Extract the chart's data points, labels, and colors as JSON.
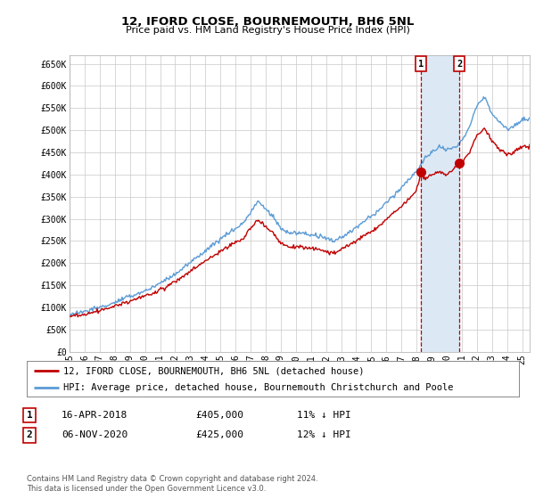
{
  "title": "12, IFORD CLOSE, BOURNEMOUTH, BH6 5NL",
  "subtitle": "Price paid vs. HM Land Registry's House Price Index (HPI)",
  "ylabel_ticks": [
    "£0",
    "£50K",
    "£100K",
    "£150K",
    "£200K",
    "£250K",
    "£300K",
    "£350K",
    "£400K",
    "£450K",
    "£500K",
    "£550K",
    "£600K",
    "£650K"
  ],
  "ytick_values": [
    0,
    50000,
    100000,
    150000,
    200000,
    250000,
    300000,
    350000,
    400000,
    450000,
    500000,
    550000,
    600000,
    650000
  ],
  "ylim": [
    0,
    670000
  ],
  "xlim_start": 1995.0,
  "xlim_end": 2025.5,
  "xtick_years": [
    1995,
    1996,
    1997,
    1998,
    1999,
    2000,
    2001,
    2002,
    2003,
    2004,
    2005,
    2006,
    2007,
    2008,
    2009,
    2010,
    2011,
    2012,
    2013,
    2014,
    2015,
    2016,
    2017,
    2018,
    2019,
    2020,
    2021,
    2022,
    2023,
    2024,
    2025
  ],
  "xtick_labels": [
    "95",
    "96",
    "97",
    "98",
    "99",
    "00",
    "01",
    "02",
    "03",
    "04",
    "05",
    "06",
    "07",
    "08",
    "09",
    "10",
    "11",
    "12",
    "13",
    "14",
    "15",
    "16",
    "17",
    "18",
    "19",
    "20",
    "21",
    "22",
    "23",
    "24",
    "25"
  ],
  "hpi_color": "#5b9bd5",
  "price_color": "#c00000",
  "shade_color": "#dce9f5",
  "marker1_date": 2018.29,
  "marker1_price": 405000,
  "marker2_date": 2020.84,
  "marker2_price": 425000,
  "legend_label1": "12, IFORD CLOSE, BOURNEMOUTH, BH6 5NL (detached house)",
  "legend_label2": "HPI: Average price, detached house, Bournemouth Christchurch and Poole",
  "table_row1": [
    "1",
    "16-APR-2018",
    "£405,000",
    "11% ↓ HPI"
  ],
  "table_row2": [
    "2",
    "06-NOV-2020",
    "£425,000",
    "12% ↓ HPI"
  ],
  "footer": "Contains HM Land Registry data © Crown copyright and database right 2024.\nThis data is licensed under the Open Government Licence v3.0.",
  "background_color": "#ffffff",
  "grid_color": "#c8c8c8"
}
